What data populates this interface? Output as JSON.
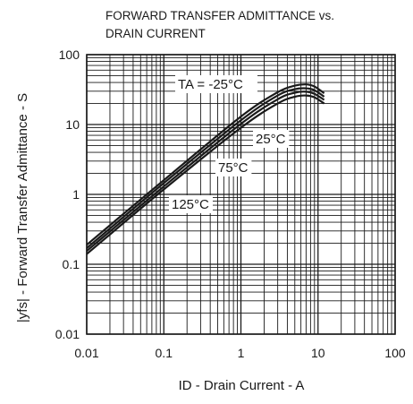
{
  "chart_data": {
    "type": "line",
    "title": [
      "FORWARD TRANSFER ADMITTANCE vs.",
      "DRAIN CURRENT"
    ],
    "xlabel": "ID - Drain Current - A",
    "ylabel": "|yfs| - Forward Transfer Admittance - S",
    "x_scale": "log",
    "y_scale": "log",
    "xlim": [
      0.01,
      100
    ],
    "ylim": [
      0.01,
      100
    ],
    "x_ticks": [
      "0.01",
      "0.1",
      "1",
      "10",
      "100"
    ],
    "y_ticks": [
      "0.01",
      "0.1",
      "1",
      "10",
      "100"
    ],
    "grid": true,
    "series": [
      {
        "name": "TA = -25°C",
        "x": [
          0.01,
          0.1,
          1,
          3,
          5,
          7,
          9,
          12
        ],
        "y": [
          0.19,
          1.6,
          13,
          29,
          36,
          37.5,
          35,
          28
        ]
      },
      {
        "name": "25°C",
        "x": [
          0.01,
          0.1,
          1,
          3,
          5,
          7,
          9,
          12
        ],
        "y": [
          0.17,
          1.45,
          11.5,
          26,
          32,
          33,
          31,
          25
        ]
      },
      {
        "name": "75°C",
        "x": [
          0.01,
          0.1,
          1,
          3,
          5,
          7,
          9,
          12
        ],
        "y": [
          0.155,
          1.3,
          10.2,
          23,
          28.5,
          29.5,
          27.5,
          22.5
        ]
      },
      {
        "name": "125°C",
        "x": [
          0.01,
          0.1,
          1,
          3,
          5,
          7,
          9,
          12
        ],
        "y": [
          0.14,
          1.18,
          9,
          20,
          25,
          26,
          24.5,
          20
        ]
      }
    ],
    "annotations": [
      "TA = -25°C",
      "25°C",
      "75°C",
      "125°C"
    ],
    "colors": {
      "line": "#1a1a1a",
      "grid": "#1a1a1a",
      "background": "#ffffff"
    }
  }
}
